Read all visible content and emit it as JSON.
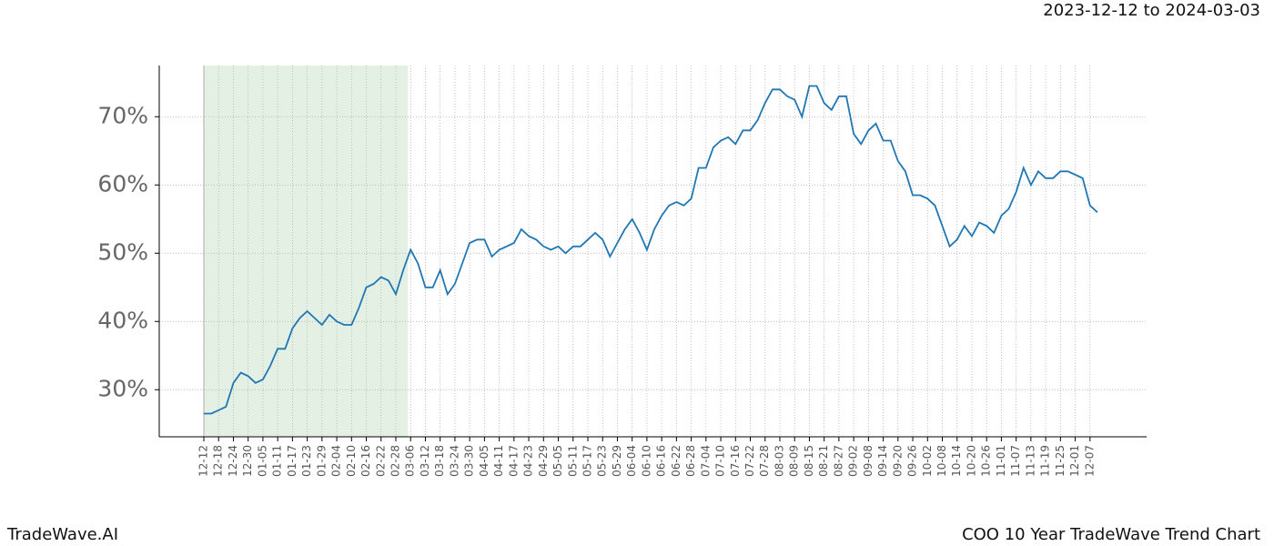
{
  "chart_data": {
    "type": "line",
    "subtitle": "2023-12-12 to 2024-03-03",
    "brand": "TradeWave.AI",
    "title": "COO 10 Year TradeWave Trend Chart",
    "categories": [
      "12-12",
      null,
      "12-18",
      null,
      "12-24",
      null,
      "12-30",
      null,
      "01-05",
      null,
      "01-11",
      null,
      "01-17",
      null,
      "01-23",
      null,
      "01-29",
      null,
      "02-04",
      null,
      "02-10",
      null,
      "02-16",
      null,
      "02-22",
      null,
      "02-28",
      null,
      "03-06",
      null,
      "03-12",
      null,
      "03-18",
      null,
      "03-24",
      null,
      "03-30",
      null,
      "04-05",
      null,
      "04-11",
      null,
      "04-17",
      null,
      "04-23",
      null,
      "04-29",
      null,
      "05-05",
      null,
      "05-11",
      null,
      "05-17",
      null,
      "05-23",
      null,
      "05-29",
      null,
      "06-04",
      null,
      "06-10",
      null,
      "06-16",
      null,
      "06-22",
      null,
      "06-28",
      null,
      "07-04",
      null,
      "07-10",
      null,
      "07-16",
      null,
      "07-22",
      null,
      "07-28",
      null,
      "08-03",
      null,
      "08-09",
      null,
      "08-15",
      null,
      "08-21",
      null,
      "08-27",
      null,
      "09-02",
      null,
      "09-08",
      null,
      "09-14",
      null,
      "09-20",
      null,
      "09-26",
      null,
      "10-02",
      null,
      "10-08",
      null,
      "10-14",
      null,
      "10-20",
      null,
      "10-26",
      null,
      "11-01",
      null,
      "11-07",
      null,
      "11-13",
      null,
      "11-19",
      null,
      "11-25",
      null,
      "12-01",
      null,
      "12-07",
      null
    ],
    "values": [
      26.5,
      26.5,
      27,
      27.5,
      31,
      32.5,
      32,
      31,
      31.5,
      33.5,
      36,
      36,
      39,
      40.5,
      41.5,
      40.5,
      39.5,
      41,
      40,
      39.5,
      39.5,
      42,
      45,
      45.5,
      46.5,
      46,
      44,
      47.5,
      50.5,
      48.5,
      45,
      45,
      47.5,
      44,
      45.5,
      48.5,
      51.5,
      52,
      52,
      49.5,
      50.5,
      51,
      51.5,
      53.5,
      52.5,
      52,
      51,
      50.5,
      51,
      50,
      51,
      51,
      52,
      53,
      52,
      49.5,
      51.5,
      53.5,
      55,
      53,
      50.5,
      53.5,
      55.5,
      57,
      57.5,
      57,
      58,
      62.5,
      62.5,
      65.5,
      66.5,
      67,
      66,
      68,
      68,
      69.5,
      72,
      74,
      74,
      73,
      72.5,
      70,
      74.5,
      74.5,
      72,
      71,
      73,
      73,
      67.5,
      66,
      68,
      69,
      66.5,
      66.5,
      63.5,
      62,
      58.5,
      58.5,
      58,
      57,
      54,
      51,
      52,
      54,
      52.5,
      54.5,
      54,
      53,
      55.5,
      56.5,
      59,
      62.5,
      60,
      62,
      61,
      61,
      62,
      62,
      61.5,
      61,
      57,
      56
    ],
    "color": "#1f77b4",
    "ylim": [
      23.1,
      77.5
    ],
    "yticks": [
      {
        "value": 30,
        "label": "30%"
      },
      {
        "value": 40,
        "label": "40%"
      },
      {
        "value": 50,
        "label": "50%"
      },
      {
        "value": 60,
        "label": "60%"
      },
      {
        "value": 70,
        "label": "70%"
      }
    ],
    "grid": true,
    "shaded_span": {
      "from": "12-12",
      "to": "03-06",
      "color": "#e5f0e5"
    }
  }
}
